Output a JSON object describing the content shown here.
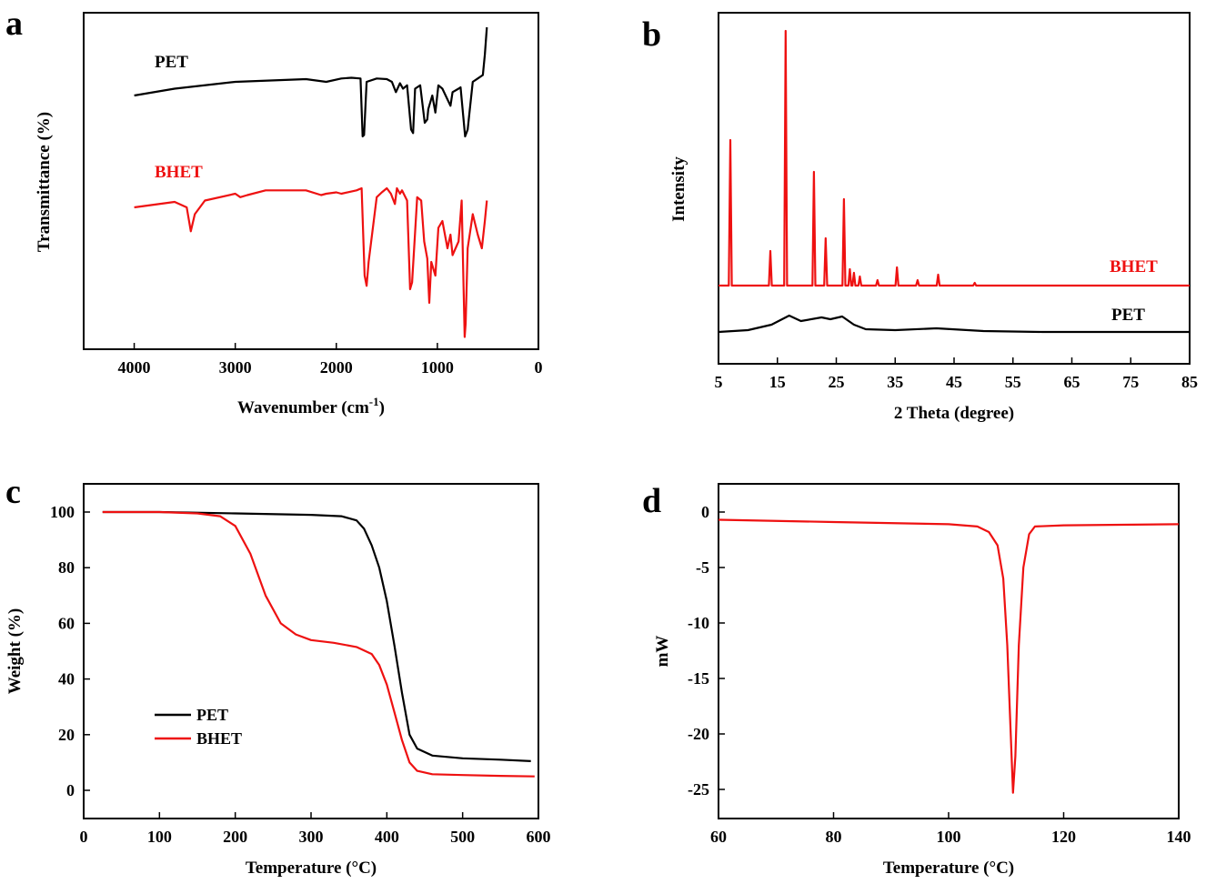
{
  "colors": {
    "pet": "#000000",
    "bhet": "#ee1111"
  },
  "chart_data": [
    {
      "panel": "a",
      "type": "line",
      "xlabel": "Wavenumber (cm",
      "xlabel_sup": "-1",
      "xlabel_suffix": ")",
      "ylabel": "Transmittance (%)",
      "xlim": [
        4500,
        0
      ],
      "xticks": [
        4000,
        3000,
        2000,
        1000,
        0
      ],
      "yticks_shown": false,
      "series_labels": [
        "PET",
        "BHET"
      ],
      "series": [
        {
          "name": "PET",
          "color": "#000000",
          "baseline": 68,
          "points": [
            [
              4000,
              0
            ],
            [
              3600,
              10
            ],
            [
              3000,
              20
            ],
            [
              2300,
              24
            ],
            [
              2100,
              20
            ],
            [
              1950,
              25
            ],
            [
              1850,
              26
            ],
            [
              1760,
              25
            ],
            [
              1740,
              -60
            ],
            [
              1725,
              -58
            ],
            [
              1700,
              20
            ],
            [
              1600,
              25
            ],
            [
              1500,
              24
            ],
            [
              1450,
              20
            ],
            [
              1410,
              5
            ],
            [
              1370,
              18
            ],
            [
              1340,
              10
            ],
            [
              1300,
              15
            ],
            [
              1260,
              -50
            ],
            [
              1240,
              -55
            ],
            [
              1220,
              10
            ],
            [
              1170,
              15
            ],
            [
              1125,
              -40
            ],
            [
              1100,
              -35
            ],
            [
              1090,
              -20
            ],
            [
              1050,
              0
            ],
            [
              1020,
              -25
            ],
            [
              990,
              15
            ],
            [
              950,
              10
            ],
            [
              870,
              -15
            ],
            [
              850,
              5
            ],
            [
              790,
              10
            ],
            [
              770,
              12
            ],
            [
              725,
              -60
            ],
            [
              700,
              -50
            ],
            [
              650,
              20
            ],
            [
              600,
              25
            ],
            [
              550,
              30
            ],
            [
              530,
              60
            ],
            [
              510,
              100
            ]
          ]
        },
        {
          "name": "BHET",
          "color": "#ee1111",
          "baseline": 32,
          "points": [
            [
              4000,
              0
            ],
            [
              3600,
              8
            ],
            [
              3480,
              0
            ],
            [
              3440,
              -35
            ],
            [
              3400,
              -10
            ],
            [
              3300,
              10
            ],
            [
              3000,
              20
            ],
            [
              2950,
              15
            ],
            [
              2880,
              18
            ],
            [
              2700,
              25
            ],
            [
              2300,
              25
            ],
            [
              2150,
              18
            ],
            [
              2100,
              20
            ],
            [
              2000,
              22
            ],
            [
              1950,
              20
            ],
            [
              1800,
              25
            ],
            [
              1750,
              28
            ],
            [
              1720,
              -100
            ],
            [
              1700,
              -115
            ],
            [
              1680,
              -80
            ],
            [
              1600,
              15
            ],
            [
              1550,
              22
            ],
            [
              1500,
              28
            ],
            [
              1460,
              20
            ],
            [
              1420,
              5
            ],
            [
              1400,
              28
            ],
            [
              1370,
              20
            ],
            [
              1350,
              25
            ],
            [
              1300,
              10
            ],
            [
              1270,
              -120
            ],
            [
              1250,
              -110
            ],
            [
              1200,
              15
            ],
            [
              1160,
              10
            ],
            [
              1130,
              -50
            ],
            [
              1100,
              -75
            ],
            [
              1080,
              -140
            ],
            [
              1060,
              -80
            ],
            [
              1020,
              -100
            ],
            [
              990,
              -30
            ],
            [
              950,
              -20
            ],
            [
              900,
              -60
            ],
            [
              870,
              -40
            ],
            [
              850,
              -70
            ],
            [
              790,
              -50
            ],
            [
              760,
              10
            ],
            [
              730,
              -190
            ],
            [
              720,
              -170
            ],
            [
              700,
              -60
            ],
            [
              650,
              -10
            ],
            [
              600,
              -40
            ],
            [
              560,
              -60
            ],
            [
              530,
              -20
            ],
            [
              510,
              10
            ]
          ]
        }
      ]
    },
    {
      "panel": "b",
      "type": "line",
      "xlabel": "2 Theta (degree)",
      "ylabel": "Intensity",
      "xlim": [
        5,
        85
      ],
      "xticks": [
        5,
        15,
        25,
        35,
        45,
        55,
        65,
        75,
        85
      ],
      "yticks_shown": false,
      "series_labels": [
        "BHET",
        "PET"
      ],
      "series": [
        {
          "name": "BHET",
          "color": "#ee1111",
          "baseline": 0,
          "peaks": [
            [
              7.0,
              160
            ],
            [
              13.8,
              38
            ],
            [
              16.4,
              280
            ],
            [
              21.2,
              125
            ],
            [
              23.2,
              52
            ],
            [
              26.3,
              95
            ],
            [
              27.3,
              18
            ],
            [
              28.0,
              14
            ],
            [
              29.0,
              10
            ],
            [
              32.0,
              6
            ],
            [
              35.3,
              20
            ],
            [
              38.8,
              6
            ],
            [
              42.3,
              12
            ],
            [
              48.5,
              3
            ]
          ]
        },
        {
          "name": "PET",
          "color": "#000000",
          "baseline": 0,
          "profile": [
            [
              5,
              0
            ],
            [
              10,
              2
            ],
            [
              14,
              8
            ],
            [
              17,
              18
            ],
            [
              19,
              12
            ],
            [
              22.5,
              16
            ],
            [
              24,
              14
            ],
            [
              26,
              17
            ],
            [
              28,
              8
            ],
            [
              30,
              3
            ],
            [
              35,
              2
            ],
            [
              42,
              4
            ],
            [
              50,
              1
            ],
            [
              60,
              0
            ],
            [
              85,
              0
            ]
          ]
        }
      ]
    },
    {
      "panel": "c",
      "type": "line",
      "xlabel": "Temperature (°C)",
      "ylabel": "Weight (%)",
      "xlim": [
        0,
        600
      ],
      "ylim": [
        -10,
        110
      ],
      "xticks": [
        0,
        100,
        200,
        300,
        400,
        500,
        600
      ],
      "yticks": [
        0,
        20,
        40,
        60,
        80,
        100
      ],
      "legend": [
        "PET",
        "BHET"
      ],
      "legend_position": "lower-left",
      "series": [
        {
          "name": "PET",
          "color": "#000000",
          "points": [
            [
              25,
              100
            ],
            [
              100,
              100
            ],
            [
              200,
              99.5
            ],
            [
              300,
              99
            ],
            [
              340,
              98.5
            ],
            [
              360,
              97
            ],
            [
              370,
              94
            ],
            [
              380,
              88
            ],
            [
              390,
              80
            ],
            [
              400,
              68
            ],
            [
              410,
              52
            ],
            [
              420,
              35
            ],
            [
              430,
              20
            ],
            [
              440,
              15
            ],
            [
              460,
              12.5
            ],
            [
              500,
              11.5
            ],
            [
              550,
              11
            ],
            [
              590,
              10.5
            ]
          ]
        },
        {
          "name": "BHET",
          "color": "#ee1111",
          "points": [
            [
              25,
              100
            ],
            [
              100,
              100
            ],
            [
              150,
              99.5
            ],
            [
              180,
              98.5
            ],
            [
              200,
              95
            ],
            [
              220,
              85
            ],
            [
              240,
              70
            ],
            [
              260,
              60
            ],
            [
              280,
              56
            ],
            [
              300,
              54
            ],
            [
              330,
              53
            ],
            [
              360,
              51.5
            ],
            [
              380,
              49
            ],
            [
              390,
              45
            ],
            [
              400,
              38
            ],
            [
              410,
              28
            ],
            [
              420,
              18
            ],
            [
              430,
              10
            ],
            [
              440,
              7
            ],
            [
              460,
              5.8
            ],
            [
              500,
              5.5
            ],
            [
              550,
              5.2
            ],
            [
              595,
              5
            ]
          ]
        }
      ]
    },
    {
      "panel": "d",
      "type": "line",
      "xlabel": "Temperature (°C)",
      "ylabel": "mW",
      "xlim": [
        60,
        140
      ],
      "ylim": [
        -27,
        2.5
      ],
      "xticks": [
        60,
        80,
        100,
        120,
        140
      ],
      "yticks": [
        0,
        -5,
        -10,
        -15,
        -20,
        -25
      ],
      "series": [
        {
          "name": "",
          "color": "#ee1111",
          "points": [
            [
              60,
              -0.7
            ],
            [
              80,
              -0.9
            ],
            [
              100,
              -1.1
            ],
            [
              105,
              -1.3
            ],
            [
              107,
              -1.8
            ],
            [
              108.5,
              -3
            ],
            [
              109.5,
              -6
            ],
            [
              110.2,
              -12
            ],
            [
              110.8,
              -20
            ],
            [
              111.2,
              -25.3
            ],
            [
              111.6,
              -22
            ],
            [
              112.2,
              -12
            ],
            [
              113,
              -5
            ],
            [
              114,
              -2
            ],
            [
              115,
              -1.3
            ],
            [
              120,
              -1.2
            ],
            [
              140,
              -1.1
            ]
          ]
        }
      ]
    }
  ]
}
